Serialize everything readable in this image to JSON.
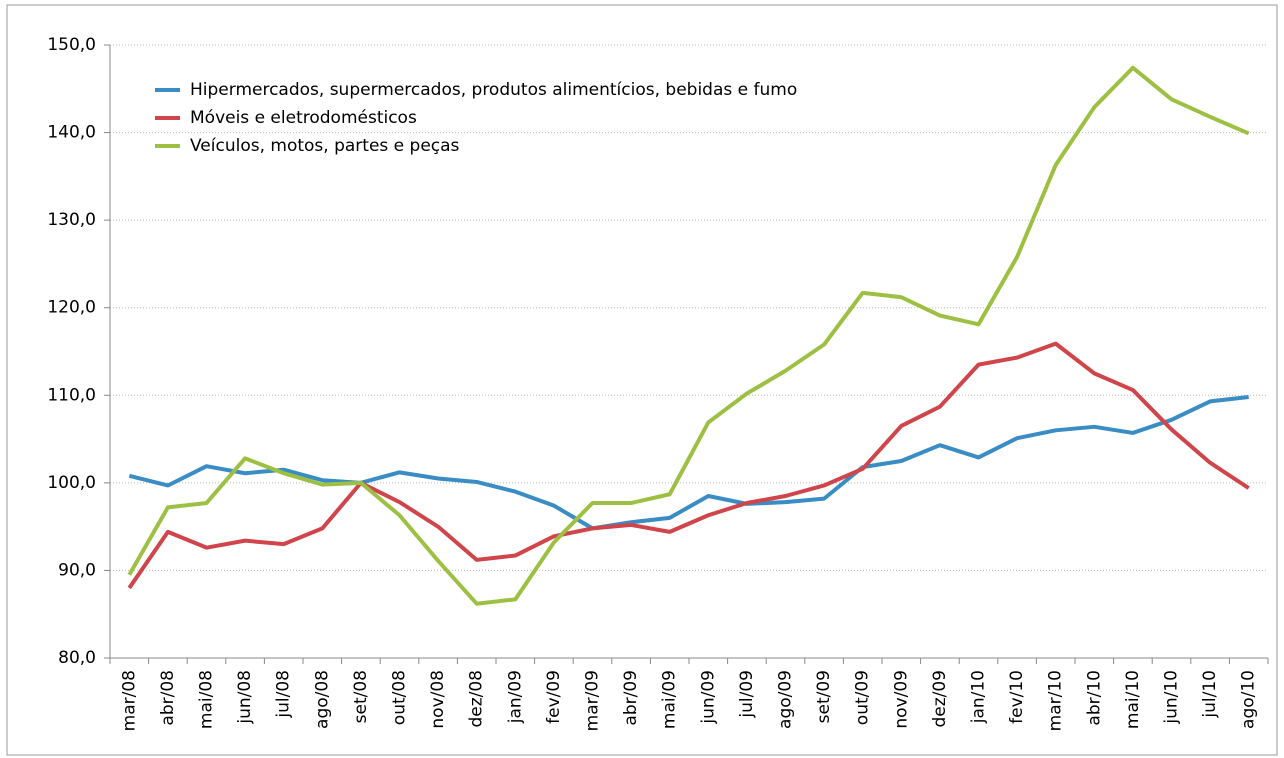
{
  "chart_data": {
    "type": "line",
    "categories": [
      "mar/08",
      "abr/08",
      "mai/08",
      "jun/08",
      "jul/08",
      "ago/08",
      "set/08",
      "out/08",
      "nov/08",
      "dez/08",
      "jan/09",
      "fev/09",
      "mar/09",
      "abr/09",
      "mai/09",
      "jun/09",
      "jul/09",
      "ago/09",
      "set/09",
      "out/09",
      "nov/09",
      "dez/09",
      "jan/10",
      "fev/10",
      "mar/10",
      "abr/10",
      "mai/10",
      "jun/10",
      "jul/10",
      "ago/10"
    ],
    "series": [
      {
        "name": "Hipermercados, supermercados, produtos alimentícios, bebidas e fumo",
        "color": "#3a8cc4",
        "values": [
          100.8,
          99.7,
          101.9,
          101.1,
          101.5,
          100.3,
          100.0,
          101.2,
          100.5,
          100.1,
          99.0,
          97.4,
          94.8,
          95.5,
          96.0,
          98.5,
          97.6,
          97.8,
          98.2,
          101.8,
          102.5,
          104.3,
          102.9,
          105.1,
          106.0,
          106.4,
          105.7,
          107.2,
          109.3,
          109.8
        ]
      },
      {
        "name": "Móveis e eletrodomésticos",
        "color": "#d0454c",
        "values": [
          88.0,
          94.4,
          92.6,
          93.4,
          93.0,
          94.8,
          100.0,
          97.8,
          95.0,
          91.2,
          91.7,
          93.9,
          94.8,
          95.2,
          94.4,
          96.3,
          97.7,
          98.5,
          99.7,
          101.6,
          106.5,
          108.7,
          113.5,
          114.3,
          115.9,
          112.5,
          110.6,
          106.1,
          102.3,
          99.4
        ]
      },
      {
        "name": "Veículos, motos, partes e peças",
        "color": "#9dc043",
        "values": [
          89.5,
          97.2,
          97.7,
          102.8,
          101.1,
          99.8,
          100.0,
          96.3,
          91.1,
          86.2,
          86.7,
          93.2,
          97.7,
          97.7,
          98.7,
          106.9,
          110.2,
          112.8,
          115.8,
          121.7,
          121.2,
          119.1,
          118.1,
          125.8,
          136.3,
          142.9,
          147.4,
          143.8,
          141.8,
          139.9
        ]
      }
    ],
    "ylim": [
      80,
      150
    ],
    "yticks": [
      {
        "value": 80,
        "label": "80,0"
      },
      {
        "value": 90,
        "label": "90,0"
      },
      {
        "value": 100,
        "label": "100,0"
      },
      {
        "value": 110,
        "label": "110,0"
      },
      {
        "value": 120,
        "label": "120,0"
      },
      {
        "value": 130,
        "label": "130,0"
      },
      {
        "value": 140,
        "label": "140,0"
      },
      {
        "value": 150,
        "label": "150,0"
      }
    ],
    "grid": true,
    "legend": "upper-left"
  }
}
